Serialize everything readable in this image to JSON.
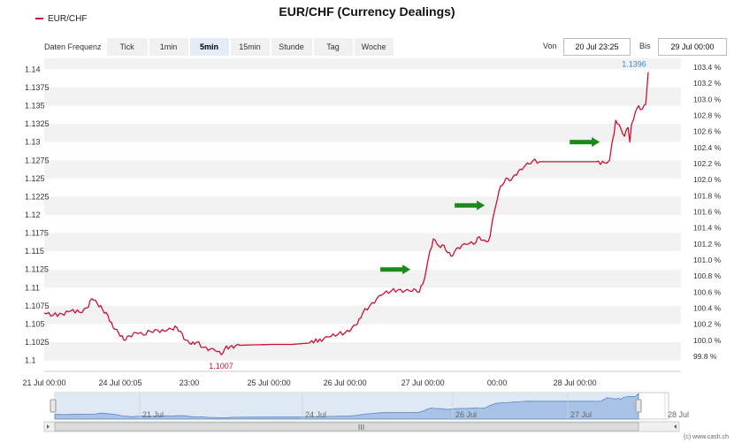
{
  "title": "EUR/CHF (Currency Dealings)",
  "legend": {
    "label": "EUR/CHF",
    "color": "#cc1133"
  },
  "toolbar": {
    "label": "Daten Frequenz",
    "buttons": [
      "Tick",
      "1min",
      "5min",
      "15min",
      "Stunde",
      "Tag",
      "Woche"
    ],
    "active": "5min"
  },
  "range": {
    "from_label": "Von",
    "from_value": "20 Jul 23:25",
    "to_label": "Bis",
    "to_value": "29 Jul 00:00"
  },
  "credit": "(c) www.cash.ch",
  "chart_data": {
    "type": "line",
    "title": "EUR/CHF (Currency Dealings)",
    "series": [
      {
        "name": "EUR/CHF",
        "color": "#cc1133",
        "points": [
          [
            0,
            1.1065
          ],
          [
            5,
            1.1062
          ],
          [
            10,
            1.1064
          ],
          [
            15,
            1.1068
          ],
          [
            20,
            1.1066
          ],
          [
            24,
            1.1072
          ],
          [
            27,
            1.1085
          ],
          [
            30,
            1.1078
          ],
          [
            33,
            1.107
          ],
          [
            36,
            1.1062
          ],
          [
            39,
            1.1045
          ],
          [
            42,
            1.1038
          ],
          [
            45,
            1.1028
          ],
          [
            48,
            1.1034
          ],
          [
            52,
            1.1038
          ],
          [
            56,
            1.1035
          ],
          [
            60,
            1.104
          ],
          [
            64,
            1.1042
          ],
          [
            68,
            1.104
          ],
          [
            72,
            1.1043
          ],
          [
            75,
            1.1045
          ],
          [
            77,
            1.104
          ],
          [
            80,
            1.1028
          ],
          [
            83,
            1.1022
          ],
          [
            86,
            1.1025
          ],
          [
            90,
            1.1018
          ],
          [
            94,
            1.1016
          ],
          [
            98,
            1.1012
          ],
          [
            100,
            1.1008
          ],
          [
            102,
            1.1016
          ],
          [
            105,
            1.1019
          ],
          [
            108,
            1.102
          ],
          [
            112,
            1.1021
          ],
          [
            128,
            1.1022
          ],
          [
            140,
            1.1022
          ],
          [
            150,
            1.1024
          ],
          [
            158,
            1.103
          ],
          [
            162,
            1.1033
          ],
          [
            166,
            1.1036
          ],
          [
            170,
            1.1038
          ],
          [
            174,
            1.1045
          ],
          [
            177,
            1.105
          ],
          [
            180,
            1.1065
          ],
          [
            184,
            1.1075
          ],
          [
            188,
            1.1085
          ],
          [
            192,
            1.1092
          ],
          [
            196,
            1.1095
          ],
          [
            200,
            1.1097
          ],
          [
            204,
            1.1096
          ],
          [
            208,
            1.1095
          ],
          [
            210,
            1.1097
          ],
          [
            212,
            1.1094
          ],
          [
            214,
            1.1105
          ],
          [
            216,
            1.1125
          ],
          [
            218,
            1.115
          ],
          [
            220,
            1.1167
          ],
          [
            222,
            1.116
          ],
          [
            224,
            1.1155
          ],
          [
            226,
            1.1158
          ],
          [
            228,
            1.1148
          ],
          [
            230,
            1.1143
          ],
          [
            232,
            1.115
          ],
          [
            234,
            1.1155
          ],
          [
            236,
            1.1158
          ],
          [
            240,
            1.116
          ],
          [
            244,
            1.1162
          ],
          [
            246,
            1.117
          ],
          [
            248,
            1.1165
          ],
          [
            250,
            1.1163
          ],
          [
            252,
            1.117
          ],
          [
            254,
            1.12
          ],
          [
            256,
            1.122
          ],
          [
            258,
            1.124
          ],
          [
            260,
            1.1245
          ],
          [
            262,
            1.125
          ],
          [
            264,
            1.1248
          ],
          [
            266,
            1.1255
          ],
          [
            268,
            1.126
          ],
          [
            270,
            1.1262
          ],
          [
            272,
            1.1268
          ],
          [
            274,
            1.127
          ],
          [
            276,
            1.1274
          ],
          [
            280,
            1.1273
          ],
          [
            290,
            1.1273
          ],
          [
            300,
            1.1273
          ],
          [
            312,
            1.1273
          ],
          [
            318,
            1.1271
          ],
          [
            319.5,
            1.1275
          ],
          [
            321,
            1.13
          ],
          [
            322,
            1.131
          ],
          [
            323,
            1.133
          ],
          [
            324,
            1.1325
          ],
          [
            326,
            1.1318
          ],
          [
            328,
            1.1308
          ],
          [
            330,
            1.132
          ],
          [
            331,
            1.13
          ],
          [
            332,
            1.1325
          ],
          [
            334,
            1.134
          ],
          [
            336,
            1.135
          ],
          [
            338,
            1.1345
          ],
          [
            340,
            1.1352
          ],
          [
            341.4,
            1.1396
          ]
        ]
      }
    ],
    "x_tick_labels": [
      {
        "x": 0,
        "label": "21 Jul 00:00"
      },
      {
        "x": 43,
        "label": "24 Jul 00:05"
      },
      {
        "x": 82,
        "label": "23:00"
      },
      {
        "x": 127,
        "label": "25 Jul 00:00"
      },
      {
        "x": 170,
        "label": "26 Jul 00:00"
      },
      {
        "x": 214,
        "label": "27 Jul 00:00"
      },
      {
        "x": 256,
        "label": "00:00"
      },
      {
        "x": 300,
        "label": "28 Jul 00:00"
      }
    ],
    "x_range": [
      0,
      341.4
    ],
    "y_left": {
      "range": [
        1.0985,
        1.1415
      ],
      "ticks": [
        1.1,
        1.1025,
        1.105,
        1.1075,
        1.11,
        1.1125,
        1.115,
        1.1175,
        1.12,
        1.1225,
        1.125,
        1.1275,
        1.13,
        1.1325,
        1.135,
        1.1375,
        1.14
      ],
      "tick_labels": [
        "1.1",
        "1.1025",
        "1.105",
        "1.1075",
        "1.11",
        "1.1125",
        "1.115",
        "1.1175",
        "1.12",
        "1.1225",
        "1.125",
        "1.1275",
        "1.13",
        "1.1325",
        "1.135",
        "1.1375",
        "1.14"
      ]
    },
    "y_right": {
      "ticks": [
        99.8,
        100.0,
        100.2,
        100.4,
        100.6,
        100.8,
        101.0,
        101.2,
        101.4,
        101.6,
        101.8,
        102.0,
        102.2,
        102.4,
        102.6,
        102.8,
        103.0,
        103.2,
        103.4
      ],
      "tick_labels": [
        "99.8 %",
        "100.0 %",
        "100.2 %",
        "100.4 %",
        "100.6 %",
        "100.8 %",
        "101.0 %",
        "101.2 %",
        "101.4 %",
        "101.6 %",
        "101.8 %",
        "102.0 %",
        "102.2 %",
        "102.4 %",
        "102.6 %",
        "102.8 %",
        "103.0 %",
        "103.2 %",
        "103.4 %"
      ]
    },
    "annotations": [
      {
        "text": "1.1007",
        "x": 100,
        "y": 1.1007,
        "kind": "low",
        "color": "#cc1133"
      },
      {
        "text": "1.1396",
        "x": 341.4,
        "y": 1.1396,
        "kind": "high",
        "color": "#3a87c8"
      }
    ],
    "arrows": [
      {
        "x": 207,
        "y": 1.1125,
        "color": "#1a8a1a"
      },
      {
        "x": 249,
        "y": 1.1213,
        "color": "#1a8a1a"
      },
      {
        "x": 314,
        "y": 1.13,
        "color": "#1a8a1a"
      }
    ],
    "grid": "alternating horizontal bands",
    "navigator": {
      "labels": [
        {
          "x": 48,
          "label": "21 Jul"
        },
        {
          "x": 140,
          "label": "24 Jul"
        },
        {
          "x": 225,
          "label": "26 Jul"
        },
        {
          "x": 290,
          "label": "27 Jul"
        },
        {
          "x": 345,
          "label": "28 Jul"
        }
      ],
      "handle_icon": "grip-lines-icon"
    }
  }
}
